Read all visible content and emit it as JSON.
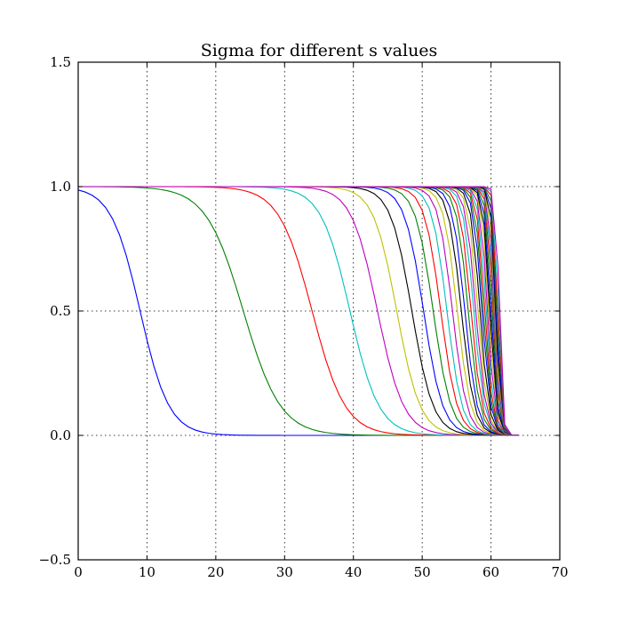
{
  "chart_data": {
    "type": "line",
    "title": "Sigma for different s values",
    "xlabel": "",
    "ylabel": "",
    "xlim": [
      0,
      70
    ],
    "ylim": [
      -0.5,
      1.5
    ],
    "xticks": [
      "0",
      "10",
      "20",
      "30",
      "40",
      "50",
      "60",
      "70"
    ],
    "yticks": [
      "−0.5",
      "0.0",
      "0.5",
      "1.0",
      "1.5"
    ],
    "grid": true,
    "legend": "none",
    "x_end": 64,
    "series": [
      {
        "midpoint": 9,
        "width": 2.1
      },
      {
        "midpoint": 24,
        "width": 2.7
      },
      {
        "midpoint": 34,
        "width": 2.4
      },
      {
        "midpoint": 39.5,
        "width": 2.1
      },
      {
        "midpoint": 43.5,
        "width": 1.9
      },
      {
        "midpoint": 46.3,
        "width": 1.7
      },
      {
        "midpoint": 48.5,
        "width": 1.55
      },
      {
        "midpoint": 50.2,
        "width": 1.4
      },
      {
        "midpoint": 51.6,
        "width": 1.3
      },
      {
        "midpoint": 52.7,
        "width": 1.2
      },
      {
        "midpoint": 53.6,
        "width": 1.1
      },
      {
        "midpoint": 54.4,
        "width": 1.05
      },
      {
        "midpoint": 55.1,
        "width": 1.0
      },
      {
        "midpoint": 55.7,
        "width": 0.95
      },
      {
        "midpoint": 56.2,
        "width": 0.9
      },
      {
        "midpoint": 56.7,
        "width": 0.86
      },
      {
        "midpoint": 57.1,
        "width": 0.82
      },
      {
        "midpoint": 57.5,
        "width": 0.78
      },
      {
        "midpoint": 57.8,
        "width": 0.74
      },
      {
        "midpoint": 58.1,
        "width": 0.7
      },
      {
        "midpoint": 58.4,
        "width": 0.67
      },
      {
        "midpoint": 58.7,
        "width": 0.64
      },
      {
        "midpoint": 58.9,
        "width": 0.61
      },
      {
        "midpoint": 59.1,
        "width": 0.58
      },
      {
        "midpoint": 59.3,
        "width": 0.56
      },
      {
        "midpoint": 59.5,
        "width": 0.54
      },
      {
        "midpoint": 59.7,
        "width": 0.52
      },
      {
        "midpoint": 59.85,
        "width": 0.5
      },
      {
        "midpoint": 60.0,
        "width": 0.48
      },
      {
        "midpoint": 60.15,
        "width": 0.46
      },
      {
        "midpoint": 60.3,
        "width": 0.44
      },
      {
        "midpoint": 60.4,
        "width": 0.42
      },
      {
        "midpoint": 60.5,
        "width": 0.4
      },
      {
        "midpoint": 60.6,
        "width": 0.38
      },
      {
        "midpoint": 60.7,
        "width": 0.36
      },
      {
        "midpoint": 60.8,
        "width": 0.34
      },
      {
        "midpoint": 60.9,
        "width": 0.32
      },
      {
        "midpoint": 61.0,
        "width": 0.3
      },
      {
        "midpoint": 61.1,
        "width": 0.28
      },
      {
        "midpoint": 61.2,
        "width": 0.26
      }
    ],
    "colors": [
      "#0000ff",
      "#008000",
      "#ff0000",
      "#00bfbf",
      "#bf00bf",
      "#bfbf00",
      "#000000"
    ]
  }
}
